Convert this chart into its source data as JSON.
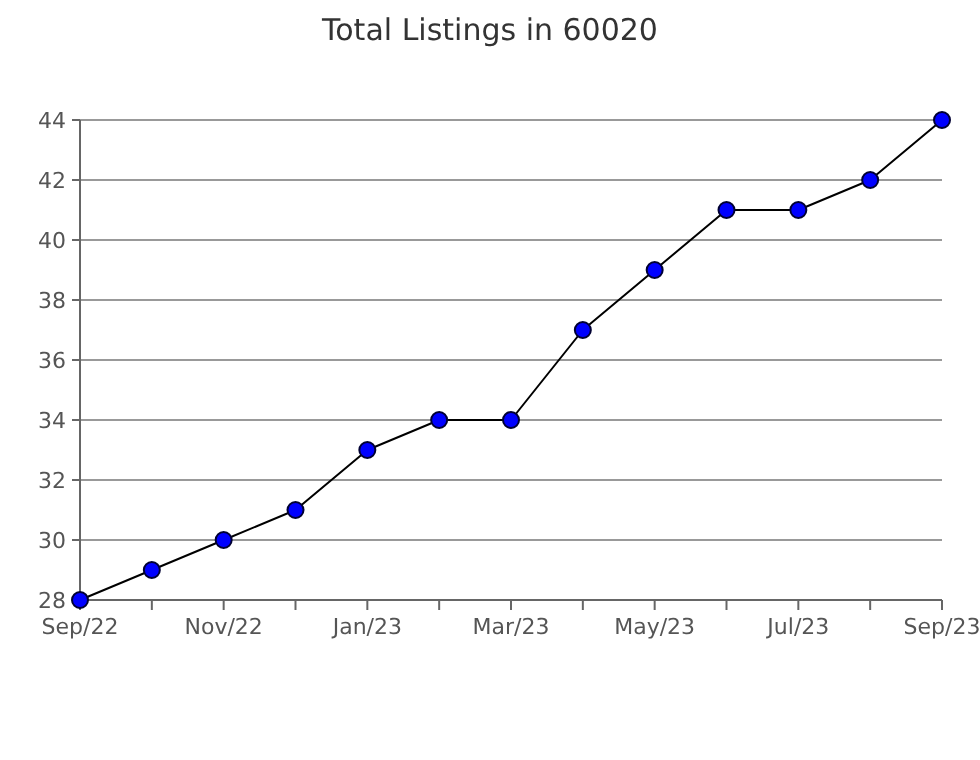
{
  "chart_data": {
    "type": "line",
    "title": "Total Listings in 60020",
    "categories": [
      "Sep/22",
      null,
      "Nov/22",
      null,
      "Jan/23",
      null,
      "Mar/23",
      null,
      "May/23",
      null,
      "Jul/23",
      null,
      "Sep/23"
    ],
    "series": [
      {
        "color": "#0000ff",
        "values": [
          28,
          29,
          30,
          31,
          33,
          34,
          34,
          37,
          39,
          41,
          41,
          42,
          44
        ]
      }
    ],
    "ylim": [
      28,
      44
    ],
    "yticks": [
      28,
      30,
      32,
      34,
      36,
      38,
      40,
      42,
      44
    ],
    "grid": "y",
    "marker": "circle",
    "line_style": "solid"
  }
}
